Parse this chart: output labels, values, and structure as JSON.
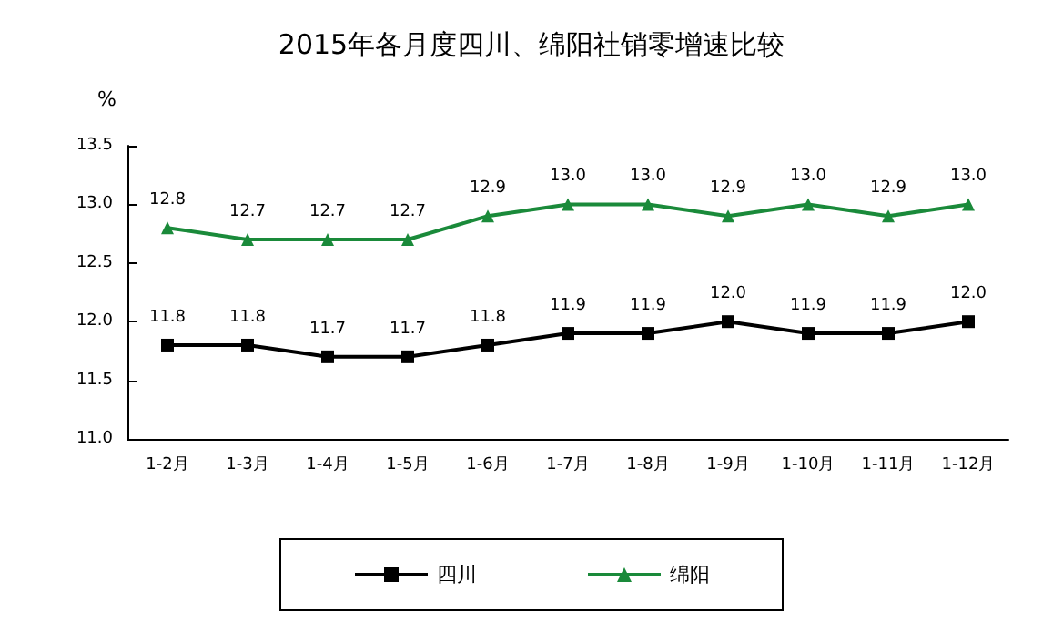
{
  "chart_data": {
    "type": "line",
    "title": "2015年各月度四川、绵阳社销零增速比较",
    "ylabel": "%",
    "categories": [
      "1-2月",
      "1-3月",
      "1-4月",
      "1-5月",
      "1-6月",
      "1-7月",
      "1-8月",
      "1-9月",
      "1-10月",
      "1-11月",
      "1-12月"
    ],
    "series": [
      {
        "name": "四川",
        "color": "#000000",
        "marker": "square",
        "values": [
          11.8,
          11.8,
          11.7,
          11.7,
          11.8,
          11.9,
          11.9,
          12.0,
          11.9,
          11.9,
          12.0
        ],
        "value_labels": [
          "11.8",
          "11.8",
          "11.7",
          "11.7",
          "11.8",
          "11.9",
          "11.9",
          "12.0",
          "11.9",
          "11.9",
          "12.0"
        ]
      },
      {
        "name": "绵阳",
        "color": "#1a8a3a",
        "marker": "triangle",
        "values": [
          12.8,
          12.7,
          12.7,
          12.7,
          12.9,
          13.0,
          13.0,
          12.9,
          13.0,
          12.9,
          13.0
        ],
        "value_labels": [
          "12.8",
          "12.7",
          "12.7",
          "12.7",
          "12.9",
          "13.0",
          "13.0",
          "12.9",
          "13.0",
          "12.9",
          "13.0"
        ]
      }
    ],
    "ylim": [
      11.0,
      13.5
    ],
    "yticks": [
      {
        "value": 11,
        "label": "11.0"
      },
      11.5,
      {
        "value": 12,
        "label": "12.0"
      },
      12.5,
      {
        "value": 13,
        "label": "13.0"
      },
      13.5
    ],
    "grid": false,
    "legend": "bottom"
  }
}
